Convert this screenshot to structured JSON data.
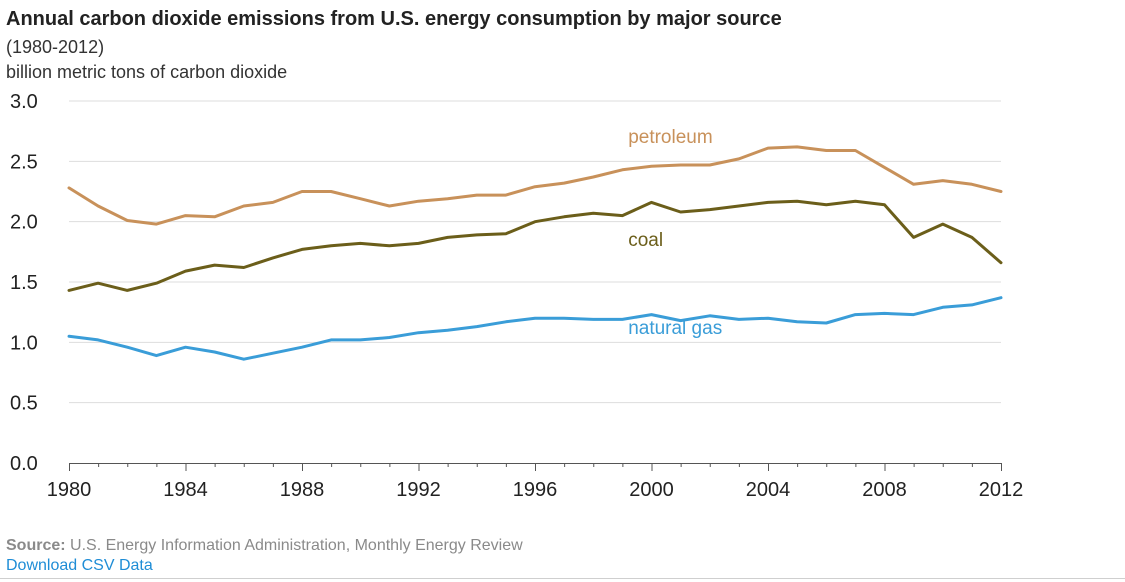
{
  "chart_data": {
    "type": "line",
    "title": "Annual carbon dioxide emissions from U.S. energy consumption by major source",
    "subtitle": "(1980-2012)",
    "ylabel": "billion metric tons of carbon dioxide",
    "xlabel": "",
    "xlim": [
      1980,
      2012
    ],
    "ylim": [
      0,
      3.0
    ],
    "grid": true,
    "x_ticks": [
      "1980",
      "1984",
      "1988",
      "1992",
      "1996",
      "2000",
      "2004",
      "2008",
      "2012"
    ],
    "y_ticks": [
      "0.0",
      "0.5",
      "1.0",
      "1.5",
      "2.0",
      "2.5",
      "3.0"
    ],
    "x": [
      1980,
      1981,
      1982,
      1983,
      1984,
      1985,
      1986,
      1987,
      1988,
      1989,
      1990,
      1991,
      1992,
      1993,
      1994,
      1995,
      1996,
      1997,
      1998,
      1999,
      2000,
      2001,
      2002,
      2003,
      2004,
      2005,
      2006,
      2007,
      2008,
      2009,
      2010,
      2011,
      2012
    ],
    "series": [
      {
        "name": "petroleum",
        "color": "#c8915a",
        "values": [
          2.28,
          2.13,
          2.01,
          1.98,
          2.05,
          2.04,
          2.13,
          2.16,
          2.25,
          2.25,
          2.19,
          2.13,
          2.17,
          2.19,
          2.22,
          2.22,
          2.29,
          2.32,
          2.37,
          2.43,
          2.46,
          2.47,
          2.47,
          2.52,
          2.61,
          2.62,
          2.59,
          2.59,
          2.45,
          2.31,
          2.34,
          2.31,
          2.25
        ]
      },
      {
        "name": "coal",
        "color": "#6b5e1a",
        "values": [
          1.43,
          1.49,
          1.43,
          1.49,
          1.59,
          1.64,
          1.62,
          1.7,
          1.77,
          1.8,
          1.82,
          1.8,
          1.82,
          1.87,
          1.89,
          1.9,
          2.0,
          2.04,
          2.07,
          2.05,
          2.16,
          2.08,
          2.1,
          2.13,
          2.16,
          2.17,
          2.14,
          2.17,
          2.14,
          1.87,
          1.98,
          1.87,
          1.66
        ]
      },
      {
        "name": "natural gas",
        "color": "#3a9dd8",
        "values": [
          1.05,
          1.02,
          0.96,
          0.89,
          0.96,
          0.92,
          0.86,
          0.91,
          0.96,
          1.02,
          1.02,
          1.04,
          1.08,
          1.1,
          1.13,
          1.17,
          1.2,
          1.2,
          1.19,
          1.19,
          1.23,
          1.18,
          1.22,
          1.19,
          1.2,
          1.17,
          1.16,
          1.23,
          1.24,
          1.23,
          1.29,
          1.31,
          1.37
        ]
      }
    ]
  },
  "footer": {
    "source_label": "Source:",
    "source_text": " U.S. Energy Information Administration, Monthly Energy Review",
    "download_label": "Download CSV Data"
  }
}
